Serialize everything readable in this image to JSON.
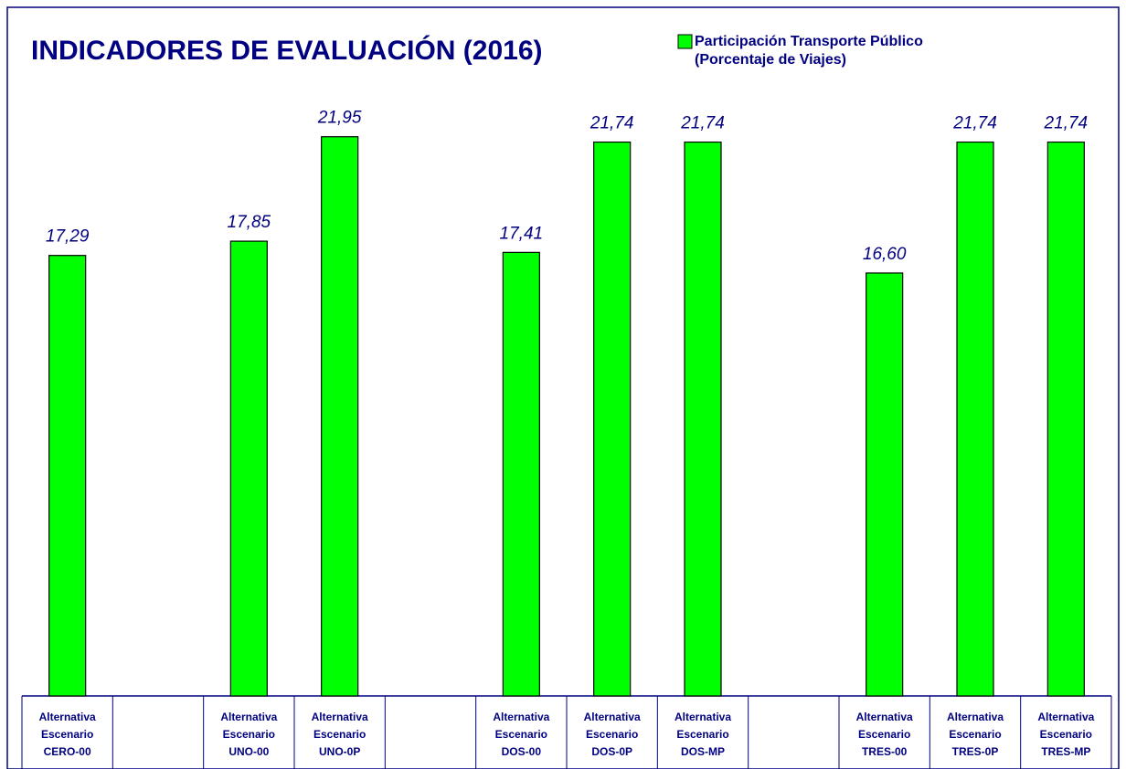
{
  "chart_data": {
    "type": "bar",
    "title": "INDICADORES DE EVALUACIÓN (2016)",
    "categories": [
      "Alternativa Escenario CERO-00",
      null,
      "Alternativa Escenario UNO-00",
      "Alternativa Escenario UNO-0P",
      null,
      "Alternativa Escenario DOS-00",
      "Alternativa Escenario DOS-0P",
      "Alternativa Escenario DOS-MP",
      null,
      "Alternativa Escenario TRES-00",
      "Alternativa Escenario TRES-0P",
      "Alternativa Escenario TRES-MP"
    ],
    "series": [
      {
        "name": "Participación Transporte Público (Porcentaje de Viajes)",
        "color": "#00ff00",
        "values": [
          17.29,
          null,
          17.85,
          21.95,
          null,
          17.41,
          21.74,
          21.74,
          null,
          16.6,
          21.74,
          21.74
        ],
        "value_labels": [
          "17,29",
          null,
          "17,85",
          "21,95",
          null,
          "17,41",
          "21,74",
          "21,74",
          null,
          "16,60",
          "21,74",
          "21,74"
        ]
      }
    ],
    "ylim": [
      0,
      22.8
    ]
  }
}
